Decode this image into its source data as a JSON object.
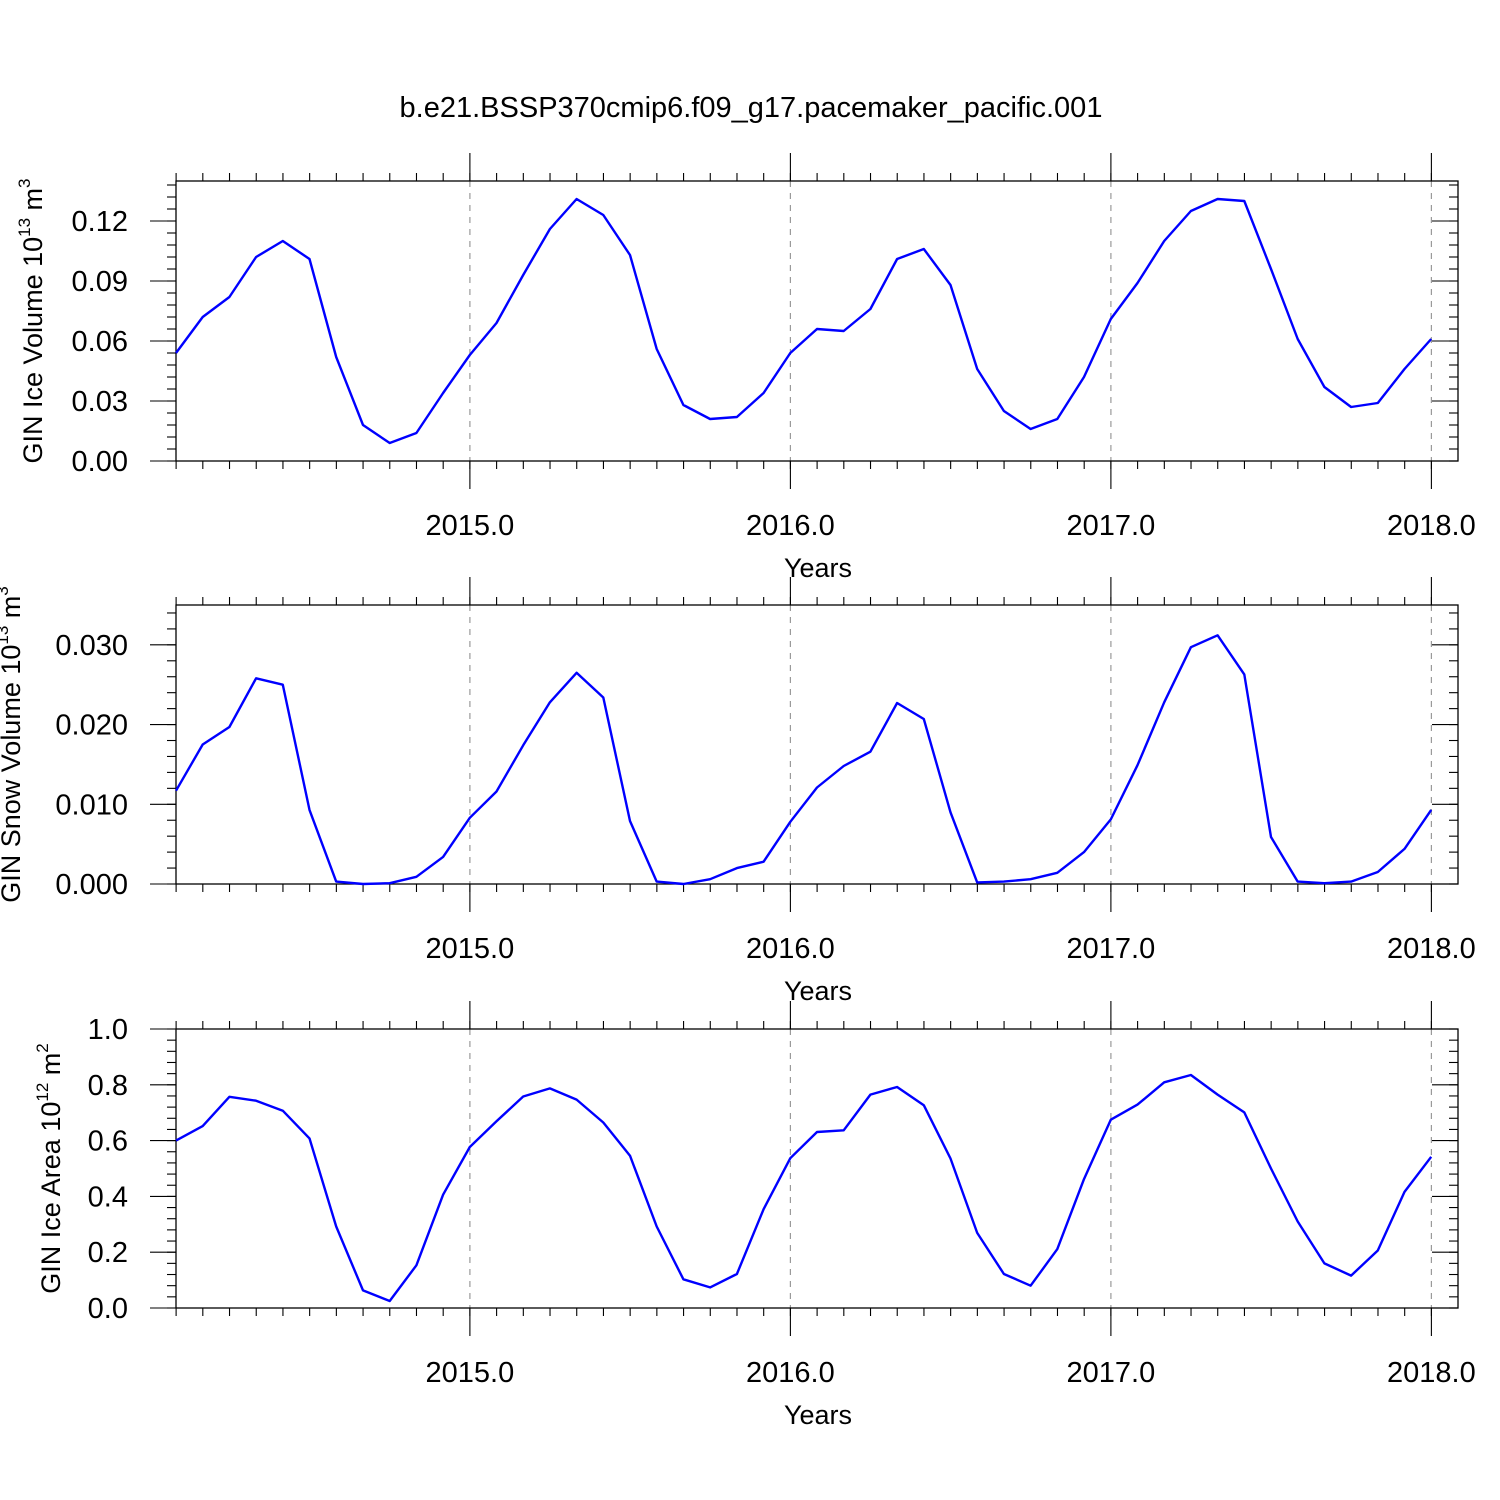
{
  "page": {
    "title": "b.e21.BSSP370cmip6.f09_g17.pacemaker_pacific.001"
  },
  "colors": {
    "line": "#0000ff",
    "grid": "#9a9a9a",
    "axis": "#000000"
  },
  "chart_data": [
    {
      "type": "line",
      "title": "",
      "xlabel": "Years",
      "ylabel": "GIN Ice Volume 10",
      "ylabel_exponent": "13",
      "ylabel_unit": " m",
      "ylabel_unit_exponent": "3",
      "xlim": [
        2014.083,
        2018.083
      ],
      "ylim": [
        0,
        0.14
      ],
      "x_ticks": [
        2015.0,
        2016.0,
        2017.0,
        2018.0
      ],
      "x_tick_labels": [
        "2015.0",
        "2016.0",
        "2017.0",
        "2018.0"
      ],
      "y_ticks": [
        0.0,
        0.03,
        0.06,
        0.09,
        0.12
      ],
      "y_tick_labels": [
        "0.00",
        "0.03",
        "0.06",
        "0.09",
        "0.12"
      ],
      "grid": "vertical dashed at major x ticks",
      "x_start": 2014.083,
      "x_step": 0.08333,
      "values": [
        0.054,
        0.072,
        0.082,
        0.102,
        0.11,
        0.101,
        0.052,
        0.018,
        0.009,
        0.014,
        0.034,
        0.053,
        0.069,
        0.093,
        0.116,
        0.131,
        0.123,
        0.103,
        0.056,
        0.028,
        0.021,
        0.022,
        0.034,
        0.054,
        0.066,
        0.065,
        0.076,
        0.101,
        0.106,
        0.088,
        0.046,
        0.025,
        0.016,
        0.021,
        0.042,
        0.071,
        0.089,
        0.11,
        0.125,
        0.131,
        0.13,
        0.096,
        0.061,
        0.037,
        0.027,
        0.029,
        0.046,
        0.061
      ]
    },
    {
      "type": "line",
      "title": "",
      "xlabel": "Years",
      "ylabel": "GIN Snow Volume 10",
      "ylabel_exponent": "13",
      "ylabel_unit": " m",
      "ylabel_unit_exponent": "3",
      "xlim": [
        2014.083,
        2018.083
      ],
      "ylim": [
        0,
        0.035
      ],
      "x_ticks": [
        2015.0,
        2016.0,
        2017.0,
        2018.0
      ],
      "x_tick_labels": [
        "2015.0",
        "2016.0",
        "2017.0",
        "2018.0"
      ],
      "y_ticks": [
        0.0,
        0.01,
        0.02,
        0.03
      ],
      "y_tick_labels": [
        "0.000",
        "0.010",
        "0.020",
        "0.030"
      ],
      "grid": "vertical dashed at major x ticks",
      "x_start": 2014.083,
      "x_step": 0.08333,
      "values": [
        0.0117,
        0.0175,
        0.0197,
        0.0258,
        0.025,
        0.0093,
        0.0003,
        0.0,
        0.0001,
        0.0009,
        0.0034,
        0.0083,
        0.0116,
        0.0174,
        0.0228,
        0.0265,
        0.0234,
        0.0079,
        0.0003,
        0.0,
        0.0006,
        0.002,
        0.0028,
        0.0078,
        0.0121,
        0.0148,
        0.0166,
        0.0227,
        0.0207,
        0.009,
        0.0002,
        0.0003,
        0.0006,
        0.0014,
        0.004,
        0.0081,
        0.0149,
        0.0228,
        0.0297,
        0.0312,
        0.0263,
        0.0059,
        0.0003,
        0.0001,
        0.0003,
        0.0015,
        0.0044,
        0.0093
      ]
    },
    {
      "type": "line",
      "title": "",
      "xlabel": "Years",
      "ylabel": "GIN Ice Area 10",
      "ylabel_exponent": "12",
      "ylabel_unit": " m",
      "ylabel_unit_exponent": "2",
      "xlim": [
        2014.083,
        2018.083
      ],
      "ylim": [
        0,
        1.0
      ],
      "x_ticks": [
        2015.0,
        2016.0,
        2017.0,
        2018.0
      ],
      "x_tick_labels": [
        "2015.0",
        "2016.0",
        "2017.0",
        "2018.0"
      ],
      "y_ticks": [
        0.0,
        0.2,
        0.4,
        0.6,
        0.8,
        1.0
      ],
      "y_tick_labels": [
        "0.0",
        "0.2",
        "0.4",
        "0.6",
        "0.8",
        "1.0"
      ],
      "grid": "vertical dashed at major x ticks",
      "x_start": 2014.083,
      "x_step": 0.08333,
      "values": [
        0.6,
        0.652,
        0.757,
        0.743,
        0.707,
        0.608,
        0.292,
        0.063,
        0.025,
        0.153,
        0.406,
        0.577,
        0.669,
        0.758,
        0.787,
        0.747,
        0.665,
        0.546,
        0.292,
        0.103,
        0.074,
        0.122,
        0.354,
        0.537,
        0.631,
        0.637,
        0.765,
        0.792,
        0.727,
        0.536,
        0.269,
        0.122,
        0.08,
        0.211,
        0.462,
        0.675,
        0.729,
        0.809,
        0.835,
        0.765,
        0.701,
        0.5,
        0.31,
        0.16,
        0.116,
        0.206,
        0.416,
        0.542
      ]
    }
  ]
}
